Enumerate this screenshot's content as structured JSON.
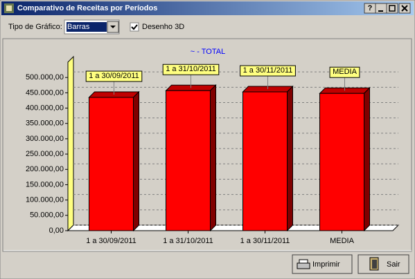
{
  "window": {
    "title": "Comparativo de Receitas por Períodos",
    "help_button": "?"
  },
  "toolbar": {
    "chart_type_label": "Tipo de Gráfico:",
    "chart_type_value": "Barras",
    "three_d_label": "Desenho 3D",
    "three_d_checked": true
  },
  "chart_data": {
    "type": "bar",
    "three_d": true,
    "title": "~ - TOTAL",
    "categories": [
      "1 a 30/09/2011",
      "1 a 31/10/2011",
      "1 a 30/11/2011",
      "MEDIA"
    ],
    "values": [
      435000,
      457000,
      453000,
      448000
    ],
    "color": "#ff0000",
    "ylim": [
      0,
      550000
    ],
    "yticks": [
      {
        "value": 0,
        "label": "0,00"
      },
      {
        "value": 50000,
        "label": "50.000,00"
      },
      {
        "value": 100000,
        "label": "100.000,00"
      },
      {
        "value": 150000,
        "label": "150.000,00"
      },
      {
        "value": 200000,
        "label": "200.000,00"
      },
      {
        "value": 250000,
        "label": "250.000,00"
      },
      {
        "value": 300000,
        "label": "300.000,00"
      },
      {
        "value": 350000,
        "label": "350.000,00"
      },
      {
        "value": 400000,
        "label": "400.000,00"
      },
      {
        "value": 450000,
        "label": "450.000,00"
      },
      {
        "value": 500000,
        "label": "500.000,00"
      }
    ],
    "grid": true
  },
  "buttons": {
    "print": "Imprimir",
    "exit": "Sair"
  }
}
